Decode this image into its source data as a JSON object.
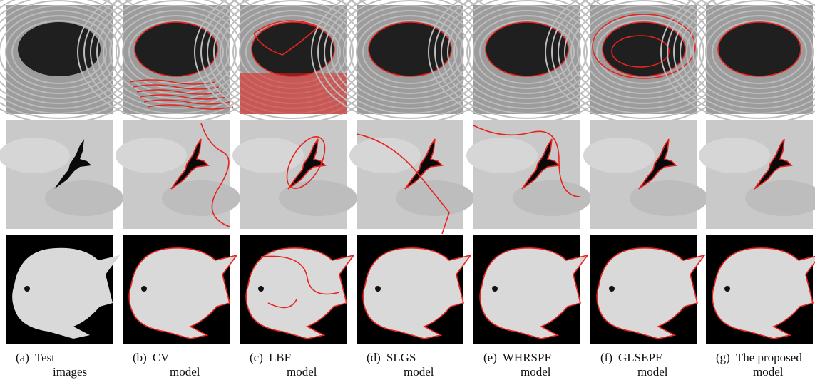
{
  "captions": [
    {
      "label": "(a)",
      "lines": [
        "Test",
        "images"
      ]
    },
    {
      "label": "(b)",
      "lines": [
        "CV",
        "model"
      ]
    },
    {
      "label": "(c)",
      "lines": [
        "LBF",
        "model"
      ]
    },
    {
      "label": "(d)",
      "lines": [
        "SLGS",
        "model"
      ]
    },
    {
      "label": "(e)",
      "lines": [
        "WHRSPF",
        "model"
      ]
    },
    {
      "label": "(f)",
      "lines": [
        "GLSEPF",
        "model"
      ]
    },
    {
      "label": "(g)",
      "lines": [
        "The proposed",
        "model"
      ]
    }
  ]
}
